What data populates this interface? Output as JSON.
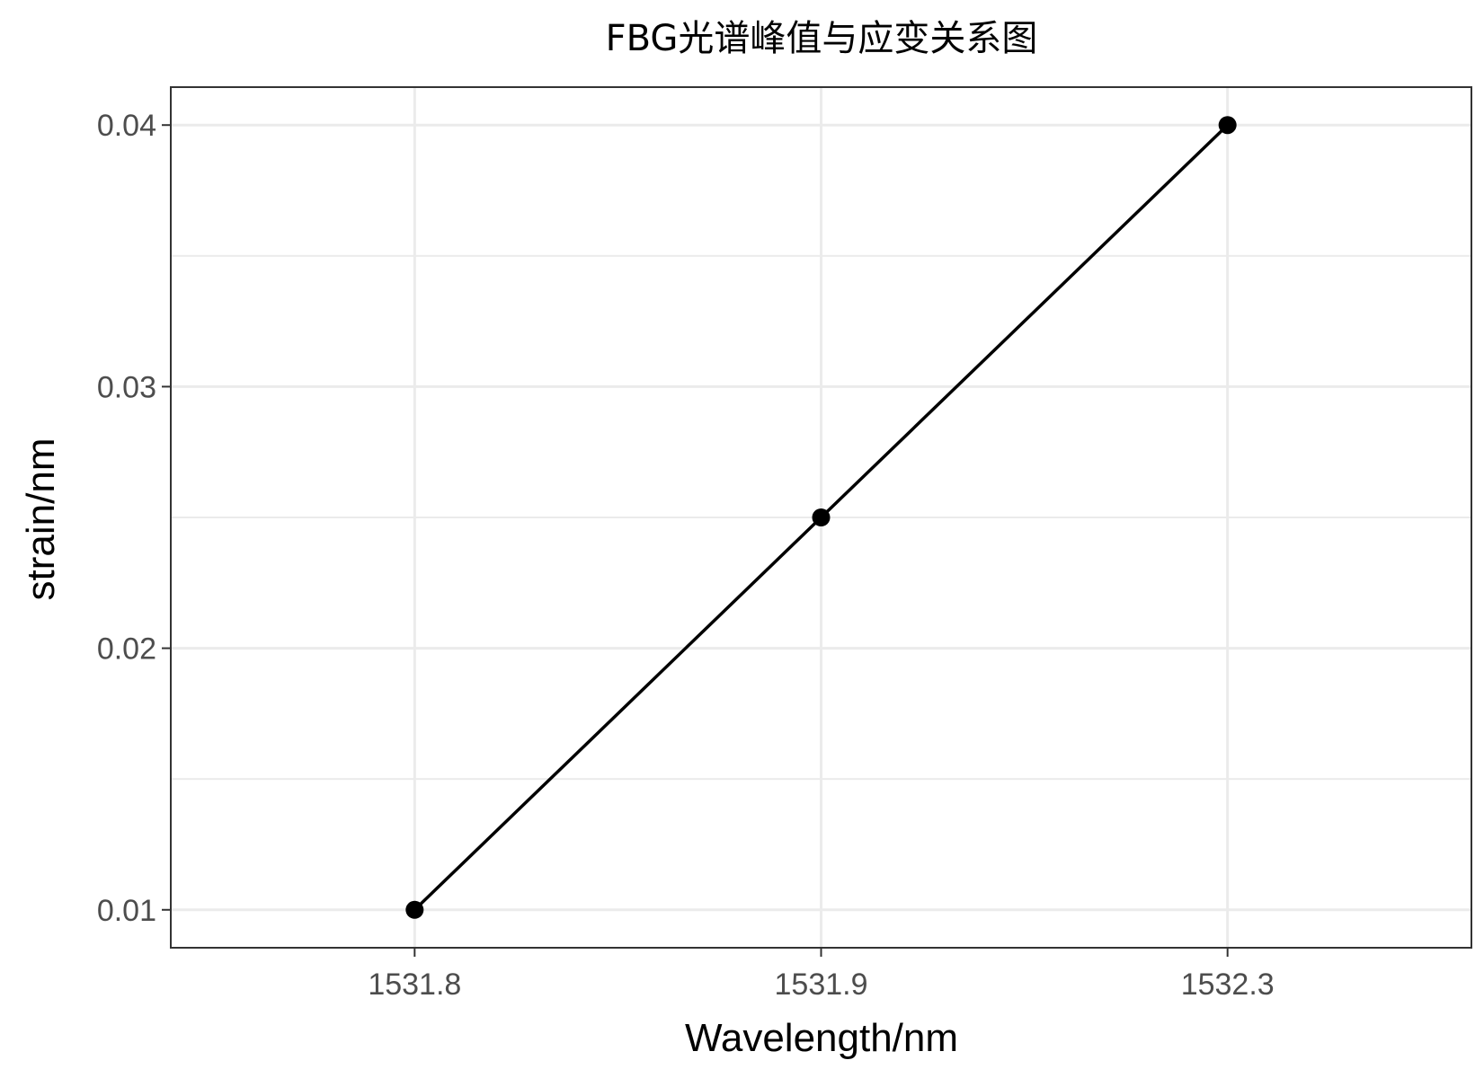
{
  "chart_data": {
    "type": "line",
    "title": "FBG光谱峰值与应变关系图",
    "xlabel": "Wavelength/nm",
    "ylabel": "strain/nm",
    "x_scale": "categorical",
    "categories": [
      "1531.8",
      "1531.9",
      "1532.3"
    ],
    "y_ticks": [
      "0.01",
      "0.02",
      "0.03",
      "0.04"
    ],
    "ylim": [
      0.00855,
      0.04145
    ],
    "grid": true,
    "series": [
      {
        "values": [
          0.01,
          0.025,
          0.04
        ],
        "color": "#000000"
      }
    ]
  }
}
